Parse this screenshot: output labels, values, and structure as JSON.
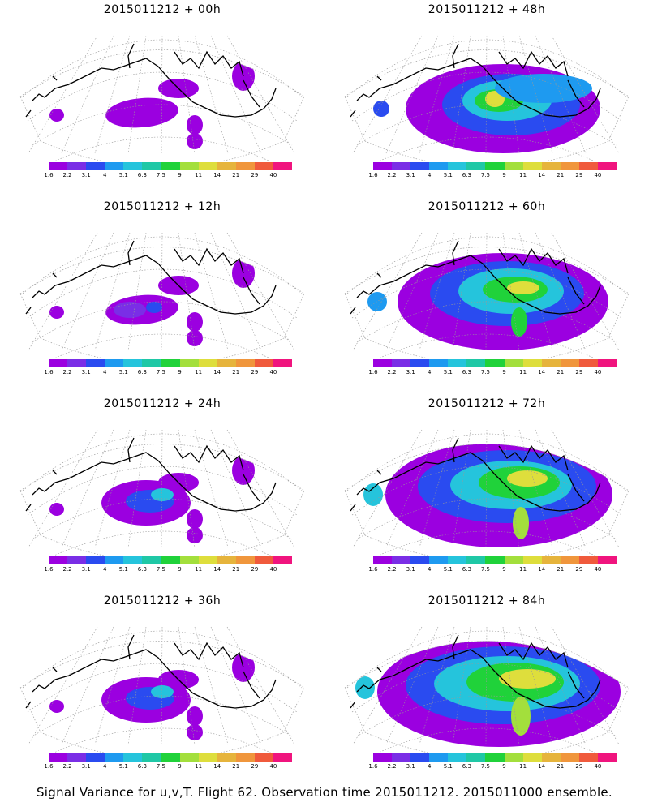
{
  "panels": [
    {
      "title": "2015011212 + 00h",
      "level": 0
    },
    {
      "title": "2015011212 + 48h",
      "level": 3
    },
    {
      "title": "2015011212 + 12h",
      "level": 1
    },
    {
      "title": "2015011212 + 60h",
      "level": 4
    },
    {
      "title": "2015011212 + 24h",
      "level": 2
    },
    {
      "title": "2015011212 + 72h",
      "level": 5
    },
    {
      "title": "2015011212 + 36h",
      "level": 2
    },
    {
      "title": "2015011212 + 84h",
      "level": 6
    }
  ],
  "colorbar": {
    "labels": [
      "1.6",
      "2.2",
      "3.1",
      "4",
      "5.1",
      "6.3",
      "7.5",
      "9",
      "11",
      "14",
      "21",
      "29",
      "40"
    ],
    "colors": [
      "#9b00e0",
      "#7a2ee6",
      "#2a4bf0",
      "#1e9af0",
      "#25c4dc",
      "#1fc8a6",
      "#20d23a",
      "#a3df3c",
      "#dede3c",
      "#e6b43c",
      "#f0963c",
      "#f05a3c",
      "#f0147e"
    ]
  },
  "caption": "Signal Variance for u,v,T. Flight 62. Observation time 2015011212. 2015011000 ensemble."
}
